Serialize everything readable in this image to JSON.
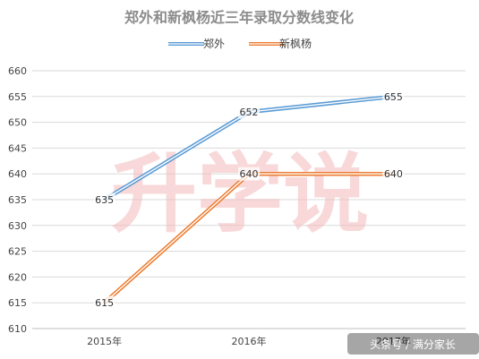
{
  "chart_data": {
    "type": "line",
    "title": "郑外和新枫杨近三年录取分数线变化",
    "categories": [
      "2015年",
      "2016年",
      "2017年"
    ],
    "series": [
      {
        "name": "郑外",
        "values": [
          635,
          652,
          655
        ],
        "color": "#5b9bd5"
      },
      {
        "name": "新枫杨",
        "values": [
          615,
          640,
          640
        ],
        "color": "#ed7d31"
      }
    ],
    "ylim": [
      610,
      660
    ],
    "y_ticks": [
      610,
      615,
      620,
      625,
      630,
      635,
      640,
      645,
      650,
      655,
      660
    ],
    "grid": "horizontal",
    "legend": "top-center",
    "data_labels": true
  },
  "watermark": "升学说",
  "credit": "头条号 / 满分家长"
}
